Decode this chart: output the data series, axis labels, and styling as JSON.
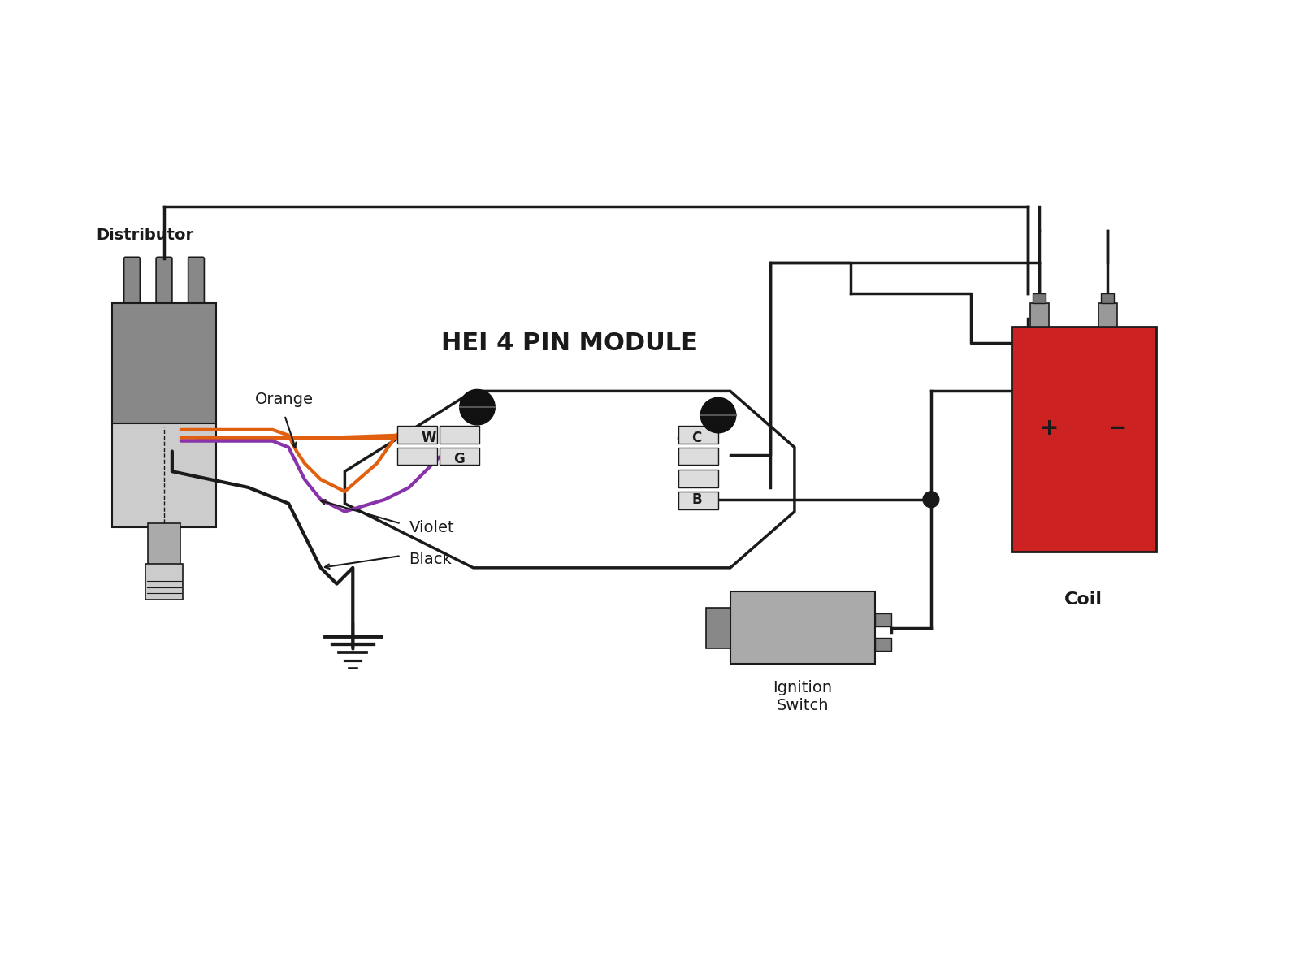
{
  "title": "HEI 4 PIN MODULE",
  "background_color": "#ffffff",
  "line_color": "#1a1a1a",
  "line_width": 2.5,
  "dist_label": "Distributor",
  "coil_label": "Coil",
  "ignition_label": "Ignition\nSwitch",
  "orange_label": "Orange",
  "violet_label": "Violet",
  "black_label": "Black",
  "w_label": "W",
  "g_label": "G",
  "c_label": "C",
  "b_label": "B",
  "dist_color_dark": "#888888",
  "dist_color_light": "#cccccc",
  "dist_color_mid": "#aaaaaa",
  "coil_color": "#cc2222",
  "connector_color": "#dddddd",
  "orange_wire": "#e06010",
  "violet_wire": "#8833aa",
  "font_size_title": 22,
  "font_size_label": 14,
  "font_size_pin": 12
}
